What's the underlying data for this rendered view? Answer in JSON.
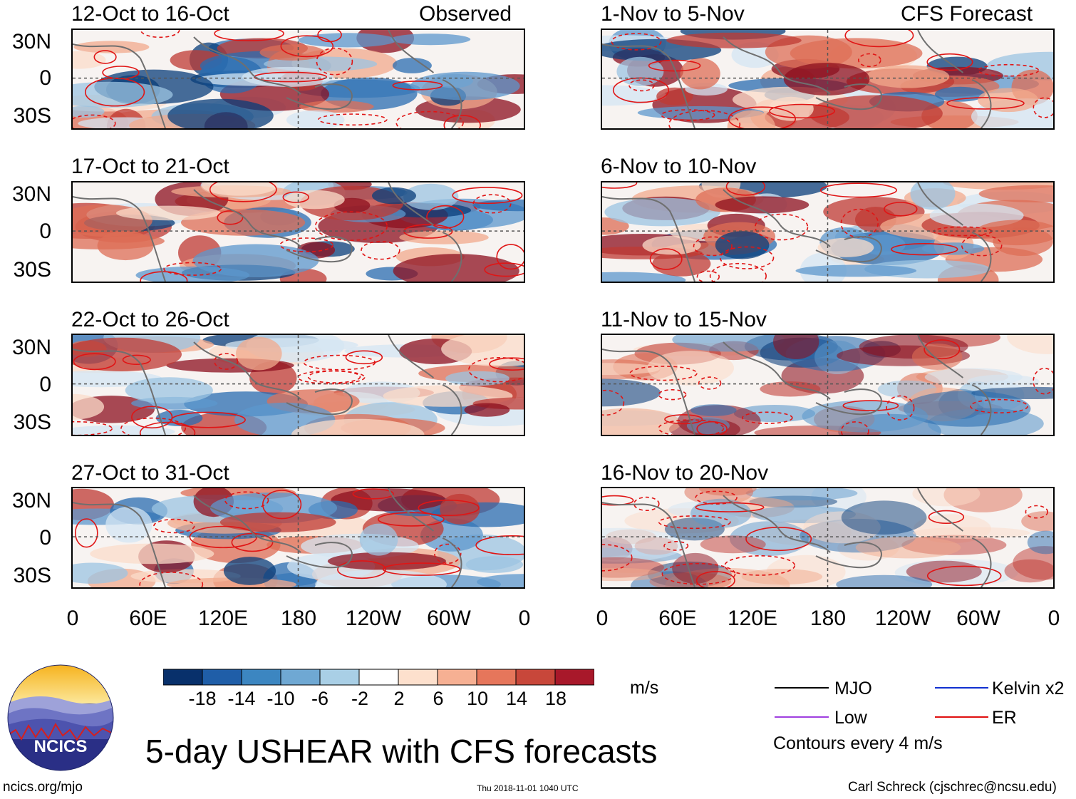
{
  "panels": {
    "left": [
      {
        "date_range": "12-Oct to 16-Oct",
        "label": "Observed"
      },
      {
        "date_range": "17-Oct to 21-Oct",
        "label": ""
      },
      {
        "date_range": "22-Oct to 26-Oct",
        "label": ""
      },
      {
        "date_range": "27-Oct to 31-Oct",
        "label": ""
      }
    ],
    "right": [
      {
        "date_range": "1-Nov to 5-Nov",
        "label": "CFS Forecast"
      },
      {
        "date_range": "6-Nov to 10-Nov",
        "label": ""
      },
      {
        "date_range": "11-Nov to 15-Nov",
        "label": ""
      },
      {
        "date_range": "16-Nov to 20-Nov",
        "label": ""
      }
    ]
  },
  "axes": {
    "y_ticks": [
      "30N",
      "0",
      "30S"
    ],
    "x_ticks": [
      "0",
      "60E",
      "120E",
      "180",
      "120W",
      "60W",
      "0"
    ]
  },
  "colorbar": {
    "unit": "m/s",
    "labels": [
      "-18",
      "-14",
      "-10",
      "-6",
      "-2",
      "2",
      "6",
      "10",
      "14",
      "18"
    ],
    "colors": [
      "#08306b",
      "#1f5ea8",
      "#3c86c1",
      "#6fa8d3",
      "#a9cfe6",
      "#d8e9f4",
      "#ffffff",
      "#fde0cd",
      "#f6b093",
      "#e6765b",
      "#c8473a",
      "#a8182a",
      "#6b0015"
    ]
  },
  "legend": {
    "items": [
      {
        "name": "MJO",
        "color": "#000000"
      },
      {
        "name": "Kelvin x2",
        "color": "#1030d0"
      },
      {
        "name": "Low",
        "color": "#a040e0"
      },
      {
        "name": "ER",
        "color": "#e01010"
      }
    ],
    "contours_note": "Contours every 4 m/s"
  },
  "logo_text": "NCICS",
  "main_title": "5-day USHEAR with CFS forecasts",
  "footer": {
    "url": "ncics.org/mjo",
    "timestamp": "Thu 2018-11-01 1040 UTC",
    "credit": "Carl Schreck (cjschrec@ncsu.edu)"
  }
}
